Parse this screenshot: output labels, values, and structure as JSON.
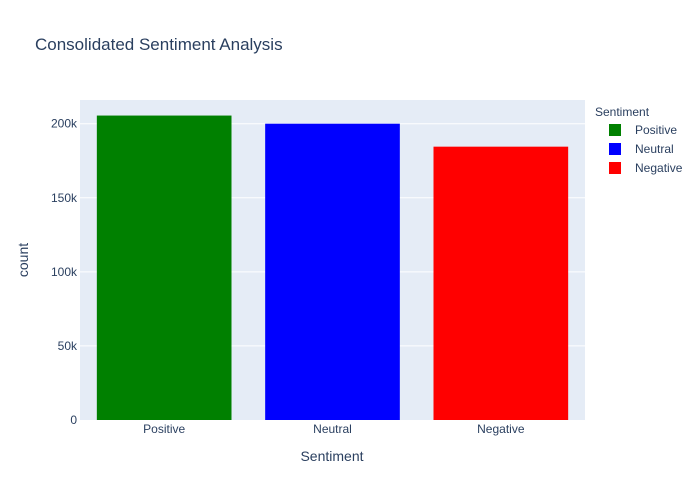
{
  "chart_data": {
    "type": "bar",
    "title": "Consolidated Sentiment Analysis",
    "xlabel": "Sentiment",
    "ylabel": "count",
    "categories": [
      "Positive",
      "Neutral",
      "Negative"
    ],
    "values": [
      205500,
      200000,
      184500
    ],
    "colors": [
      "#008000",
      "#0000ff",
      "#ff0000"
    ],
    "ylim": [
      0,
      216000
    ],
    "yticks": [
      0,
      50000,
      100000,
      150000,
      200000
    ],
    "ytick_labels": [
      "0",
      "50k",
      "100k",
      "150k",
      "200k"
    ],
    "grid": true,
    "legend": {
      "title": "Sentiment",
      "position": "right",
      "items": [
        "Positive",
        "Neutral",
        "Negative"
      ]
    },
    "plot_background": "#e5ecf6"
  }
}
